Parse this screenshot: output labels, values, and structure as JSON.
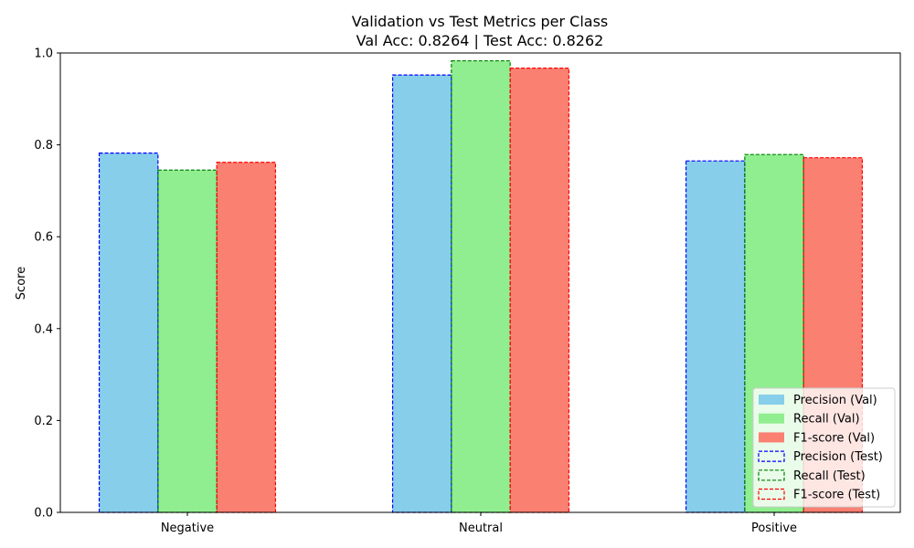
{
  "chart_data": {
    "type": "bar",
    "title": "Validation vs Test Metrics per Class",
    "subtitle": "Val Acc: 0.8264 | Test Acc: 0.8262",
    "xlabel": "",
    "ylabel": "Score",
    "ylim": [
      0,
      1
    ],
    "yticks": [
      "0.0",
      "0.2",
      "0.4",
      "0.6",
      "0.8",
      "1.0"
    ],
    "categories": [
      "Negative",
      "Neutral",
      "Positive"
    ],
    "grid": false,
    "legend_position": "bottom-right",
    "series": [
      {
        "name": "Precision (Val)",
        "values": [
          0.782,
          0.952,
          0.765
        ],
        "color": "#87ceeb",
        "style": "filled"
      },
      {
        "name": "Recall (Val)",
        "values": [
          0.745,
          0.983,
          0.779
        ],
        "color": "#90ee90",
        "style": "filled"
      },
      {
        "name": "F1-score (Val)",
        "values": [
          0.762,
          0.967,
          0.772
        ],
        "color": "#fa8072",
        "style": "filled"
      },
      {
        "name": "Precision (Test)",
        "values": [
          0.782,
          0.952,
          0.765
        ],
        "color": "#0000ff",
        "style": "dashed-outline"
      },
      {
        "name": "Recall (Test)",
        "values": [
          0.745,
          0.983,
          0.779
        ],
        "color": "#008000",
        "style": "dashed-outline"
      },
      {
        "name": "F1-score (Test)",
        "values": [
          0.762,
          0.967,
          0.772
        ],
        "color": "#ff0000",
        "style": "dashed-outline"
      }
    ]
  }
}
